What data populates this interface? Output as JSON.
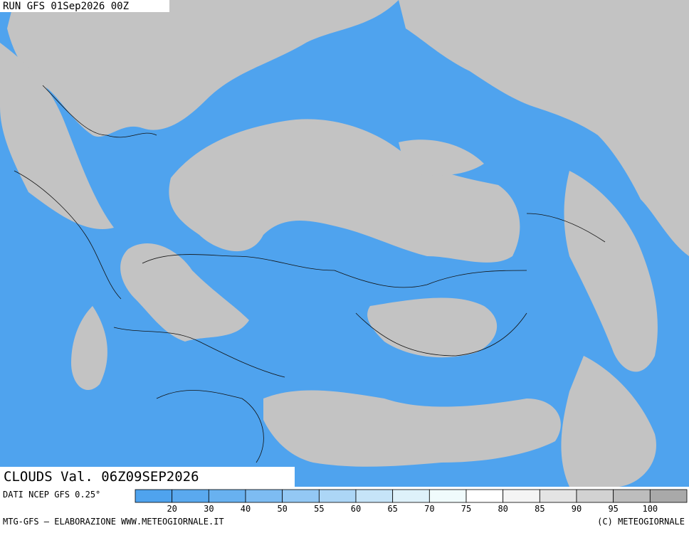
{
  "header": {
    "run": "RUN GFS 01Sep2026 00Z"
  },
  "map": {
    "title": "CLOUDS Val. 06Z09SEP2026"
  },
  "legend": {
    "source": "DATI NCEP GFS 0.25°",
    "ticks": [
      20,
      30,
      40,
      50,
      55,
      60,
      65,
      70,
      75,
      80,
      85,
      90,
      95,
      100
    ],
    "colors": [
      "#4fa3ee",
      "#5aa9ef",
      "#68b1f0",
      "#7dbcf2",
      "#93c8f4",
      "#acd6f6",
      "#c6e4f8",
      "#def1fa",
      "#f0fbfc",
      "#ffffff",
      "#f4f4f4",
      "#e4e4e4",
      "#d2d2d2",
      "#bdbdbd",
      "#a9a9a9"
    ]
  },
  "footer": {
    "left": "MTG-GFS — ELABORAZIONE WWW.METEOGIORNALE.IT",
    "right": "(C) METEOGIORNALE"
  }
}
